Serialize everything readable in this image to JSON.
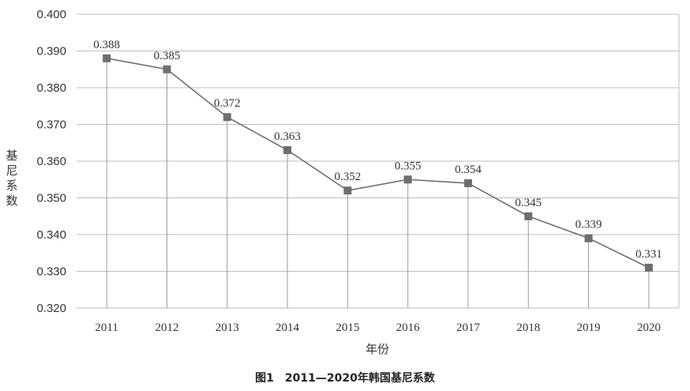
{
  "caption": "图1　2011—2020年韩国基尼系数",
  "chart_data": {
    "type": "line",
    "title": "",
    "xlabel": "年份",
    "ylabel": "基尼系数",
    "categories": [
      "2011",
      "2012",
      "2013",
      "2014",
      "2015",
      "2016",
      "2017",
      "2018",
      "2019",
      "2020"
    ],
    "series": [
      {
        "values": [
          0.388,
          0.385,
          0.372,
          0.363,
          0.352,
          0.355,
          0.354,
          0.345,
          0.339,
          0.331
        ]
      }
    ],
    "data_labels": [
      "0.388",
      "0.385",
      "0.372",
      "0.363",
      "0.352",
      "0.355",
      "0.354",
      "0.345",
      "0.339",
      "0.331"
    ],
    "ylim": [
      0.32,
      0.4
    ],
    "yticks": [
      "0.320",
      "0.330",
      "0.340",
      "0.350",
      "0.360",
      "0.370",
      "0.380",
      "0.390",
      "0.400"
    ],
    "grid": true,
    "drop_lines": true,
    "marker": "square",
    "colors": {
      "line": "#6e6e6e",
      "marker": "#6e6e6e",
      "grid": "#bdbdbd",
      "drop": "#9a9a9a"
    }
  }
}
